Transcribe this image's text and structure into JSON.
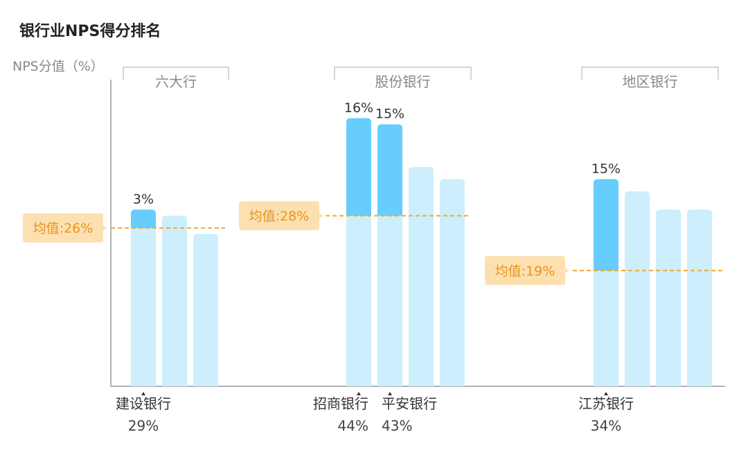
{
  "chart_data": {
    "type": "bar",
    "title": "银行业NPS得分排名",
    "ylabel": "NPS分值（%）",
    "ylim": [
      0,
      50
    ],
    "grid": false,
    "colors": {
      "bar": "#cdeefc",
      "highlight": "#66cdfc",
      "average": "#f5a623",
      "average_box": "#fde0b0",
      "average_text": "#e8941a"
    },
    "groups": [
      {
        "name": "六大行",
        "average": 26,
        "average_label": "均值:26%",
        "bars": [
          {
            "value": 29,
            "label": "建设银行",
            "value_label": "29%",
            "highlight": true,
            "diff_label": "3%"
          },
          {
            "value": 28
          },
          {
            "value": 25
          }
        ]
      },
      {
        "name": "股份银行",
        "average": 28,
        "average_label": "均值:28%",
        "bars": [
          {
            "value": 44,
            "label": "招商银行",
            "value_label": "44%",
            "highlight": true,
            "diff_label": "16%"
          },
          {
            "value": 43,
            "label": "平安银行",
            "value_label": "43%",
            "highlight": true,
            "diff_label": "15%"
          },
          {
            "value": 36
          },
          {
            "value": 34
          }
        ]
      },
      {
        "name": "地区银行",
        "average": 19,
        "average_label": "均值:19%",
        "bars": [
          {
            "value": 34,
            "label": "江苏银行",
            "value_label": "34%",
            "highlight": true,
            "diff_label": "15%"
          },
          {
            "value": 32
          },
          {
            "value": 29
          },
          {
            "value": 29
          }
        ]
      }
    ]
  }
}
